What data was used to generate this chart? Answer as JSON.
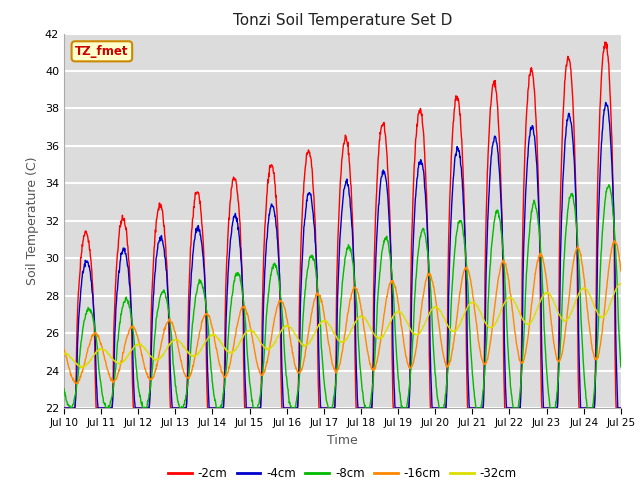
{
  "title": "Tonzi Soil Temperature Set D",
  "xlabel": "Time",
  "ylabel": "Soil Temperature (C)",
  "ylim": [
    22,
    42
  ],
  "yticks": [
    22,
    24,
    26,
    28,
    30,
    32,
    34,
    36,
    38,
    40,
    42
  ],
  "xtick_labels": [
    "Jul 10",
    "Jul 11",
    "Jul 12",
    "Jul 13",
    "Jul 14",
    "Jul 15",
    "Jul 16",
    "Jul 17",
    "Jul 18",
    "Jul 19",
    "Jul 20",
    "Jul 21",
    "Jul 22",
    "Jul 23",
    "Jul 24",
    "Jul 25"
  ],
  "series_colors": [
    "#ff0000",
    "#0000cd",
    "#00bb00",
    "#ff8800",
    "#dddd00"
  ],
  "series_labels": [
    "-2cm",
    "-4cm",
    "-8cm",
    "-16cm",
    "-32cm"
  ],
  "legend_label": "TZ_fmet",
  "legend_bg": "#ffffcc",
  "legend_border": "#cc8800",
  "bg_color": "#dcdcdc",
  "grid_color": "#ffffff"
}
